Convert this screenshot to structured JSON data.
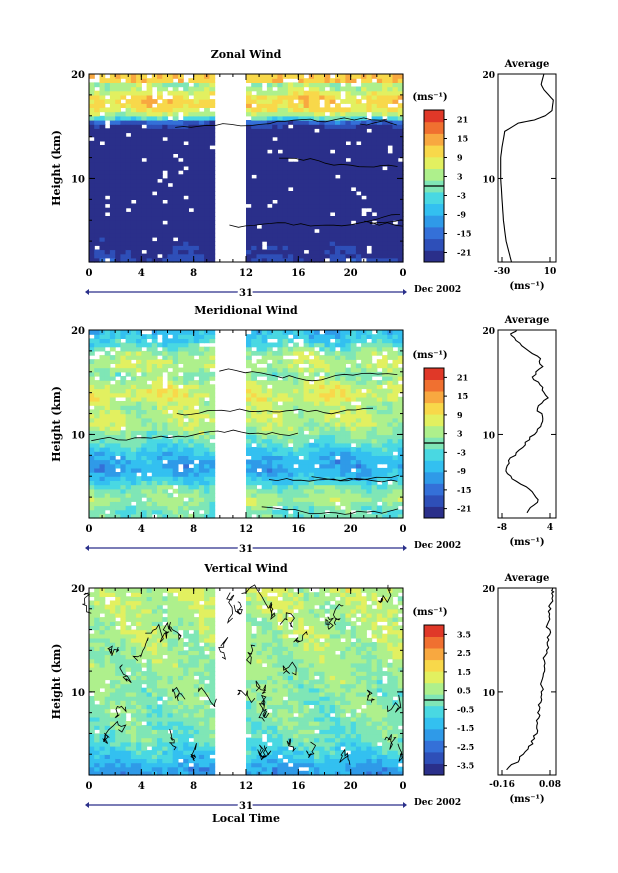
{
  "figure": {
    "x_axis_label": "Local Time",
    "date_label": "Dec 2002",
    "day_label": "31"
  },
  "chart_data": [
    {
      "type": "heatmap",
      "title": "Zonal Wind",
      "ylabel": "Height (km)",
      "ylim": [
        2,
        20
      ],
      "xlim": [
        0,
        24
      ],
      "x_ticks": [
        "0",
        "4",
        "8",
        "12",
        "16",
        "20",
        "0"
      ],
      "y_ticks": [
        "10",
        "20"
      ],
      "colorbar_unit": "(ms⁻¹)",
      "colorbar_ticks": [
        "21",
        "15",
        "9",
        "3",
        "-3",
        "-9",
        "-15",
        "-21"
      ],
      "colorbar_range": [
        -24,
        24
      ],
      "data_gap_hours": [
        10,
        11.8
      ],
      "profile": [
        [
          -20,
          2
        ],
        [
          -22,
          3
        ],
        [
          -24,
          4
        ],
        [
          -26,
          6
        ],
        [
          -27,
          8
        ],
        [
          -28,
          10
        ],
        [
          -28,
          12
        ],
        [
          -27,
          13
        ],
        [
          -25,
          14.5
        ],
        [
          -15,
          15.3
        ],
        [
          -3,
          15.6
        ],
        [
          5,
          16
        ],
        [
          10,
          16.5
        ],
        [
          11,
          17.5
        ],
        [
          4,
          18.5
        ],
        [
          2,
          19
        ],
        [
          4,
          20
        ]
      ],
      "profile_title": "Average",
      "profile_xlim": [
        -30,
        13
      ],
      "profile_x_ticks": [
        "-30",
        "10"
      ],
      "profile_xlabel": "(ms⁻¹)"
    },
    {
      "type": "heatmap",
      "title": "Meridional Wind",
      "ylabel": "Height (km)",
      "ylim": [
        2,
        20
      ],
      "xlim": [
        0,
        24
      ],
      "x_ticks": [
        "0",
        "4",
        "8",
        "12",
        "16",
        "20",
        "0"
      ],
      "y_ticks": [
        "10",
        "20"
      ],
      "colorbar_unit": "(ms⁻¹)",
      "colorbar_ticks": [
        "21",
        "15",
        "9",
        "3",
        "-3",
        "-9",
        "-15",
        "-21"
      ],
      "colorbar_range": [
        -24,
        24
      ],
      "data_gap_hours": [
        10,
        11.8
      ],
      "profile": [
        [
          -0.5,
          2.5
        ],
        [
          1.5,
          3.5
        ],
        [
          0.5,
          4.5
        ],
        [
          -2.5,
          5.5
        ],
        [
          -4.5,
          6.5
        ],
        [
          -4,
          7.5
        ],
        [
          -2,
          8.5
        ],
        [
          0,
          9.5
        ],
        [
          1.5,
          10.5
        ],
        [
          2.5,
          11.5
        ],
        [
          1.5,
          12.5
        ],
        [
          3.5,
          13.5
        ],
        [
          2.5,
          14.5
        ],
        [
          0.5,
          15.5
        ],
        [
          2.5,
          16.5
        ],
        [
          1.5,
          17.5
        ],
        [
          -1.5,
          18.5
        ],
        [
          -3.5,
          19.5
        ],
        [
          -2.5,
          20
        ]
      ],
      "profile_title": "Average",
      "profile_xlim": [
        -6,
        5
      ],
      "profile_x_ticks": [
        "-8",
        "4"
      ],
      "profile_xlabel": "(ms⁻¹)"
    },
    {
      "type": "heatmap",
      "title": "Vertical Wind",
      "ylabel": "Height (km)",
      "ylim": [
        2,
        20
      ],
      "xlim": [
        0,
        24
      ],
      "x_ticks": [
        "0",
        "4",
        "8",
        "12",
        "16",
        "20",
        "0"
      ],
      "y_ticks": [
        "10",
        "20"
      ],
      "colorbar_unit": "(ms⁻¹)",
      "colorbar_ticks": [
        "3.5",
        "2.5",
        "1.5",
        "0.5",
        "-0.5",
        "-1.5",
        "-2.5",
        "-3.5"
      ],
      "colorbar_range": [
        -4,
        4
      ],
      "data_gap_hours": [
        10,
        11.8
      ],
      "profile": [
        [
          -0.14,
          2.5
        ],
        [
          -0.08,
          3.5
        ],
        [
          -0.04,
          4.5
        ],
        [
          -0.01,
          5.5
        ],
        [
          0.0,
          6.5
        ],
        [
          0.01,
          7.5
        ],
        [
          0.015,
          8.5
        ],
        [
          0.02,
          9.5
        ],
        [
          0.025,
          10.5
        ],
        [
          0.03,
          11.5
        ],
        [
          0.035,
          12.5
        ],
        [
          0.04,
          13.5
        ],
        [
          0.05,
          14.5
        ],
        [
          0.06,
          15.5
        ],
        [
          0.05,
          16.5
        ],
        [
          0.06,
          17.5
        ],
        [
          0.065,
          18.5
        ],
        [
          0.07,
          19.5
        ],
        [
          0.075,
          20
        ]
      ],
      "profile_title": "Average",
      "profile_xlim": [
        -0.18,
        0.09
      ],
      "profile_x_ticks": [
        "-0.16",
        "0.08"
      ],
      "profile_xlabel": "(ms⁻¹)"
    }
  ]
}
